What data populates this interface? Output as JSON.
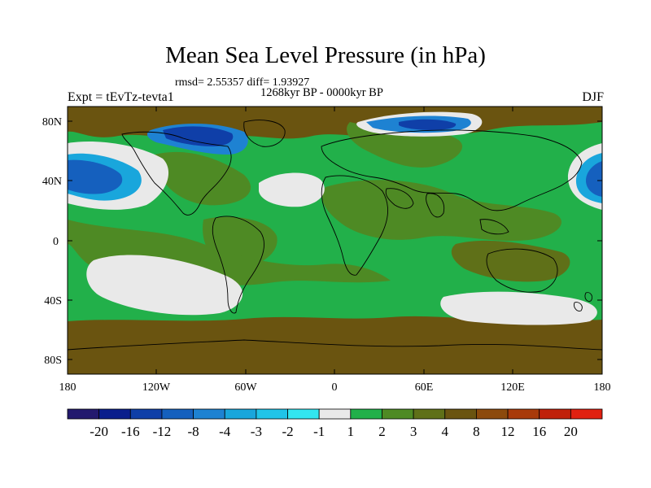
{
  "title": "Mean Sea Level Pressure (in hPa)",
  "stats": "rmsd= 2.55357 diff= 1.93927",
  "period": "1268kyr BP - 0000kyr BP",
  "experiment": "Expt = tEvTz-tevta1",
  "season": "DJF",
  "map": {
    "lat_labels": [
      "80N",
      "40N",
      "0",
      "40S",
      "80S"
    ],
    "lon_labels": [
      "180",
      "120W",
      "60W",
      "0",
      "60E",
      "120E",
      "180"
    ]
  },
  "colorbar": {
    "colors": [
      "#231a6e",
      "#0a1e8c",
      "#0f3fa8",
      "#1560be",
      "#1e82d2",
      "#19a6dc",
      "#20c4e8",
      "#33e6f0",
      "#e9e9e9",
      "#22b04a",
      "#4e8a24",
      "#5f7018",
      "#6a5410",
      "#8c4a0c",
      "#a83a0a",
      "#c0200a",
      "#e02010"
    ],
    "labels": [
      "-20",
      "-16",
      "-12",
      "-8",
      "-4",
      "-3",
      "-2",
      "-1",
      "1",
      "2",
      "3",
      "4",
      "8",
      "12",
      "16",
      "20"
    ]
  }
}
